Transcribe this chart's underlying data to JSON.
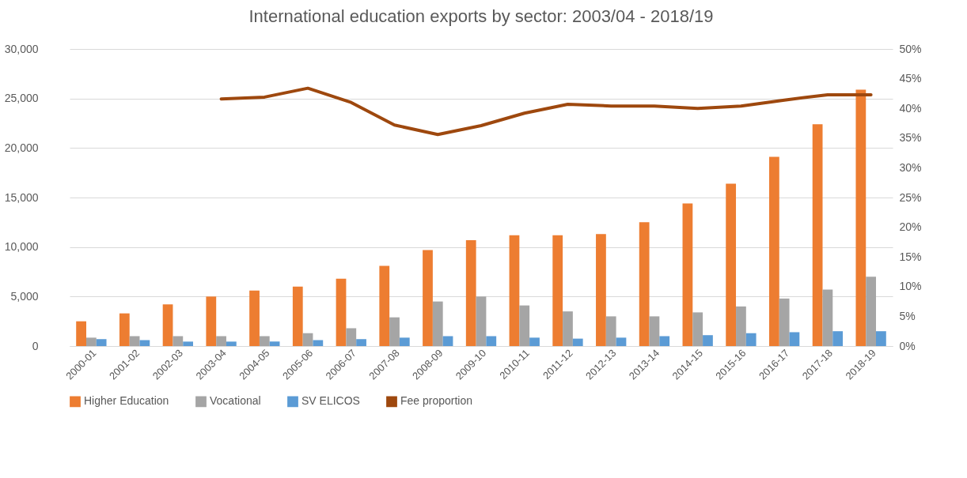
{
  "chart_data": {
    "type": "bar",
    "title": "International education exports by sector: 2003/04 - 2018/19",
    "categories": [
      "2000-01",
      "2001-02",
      "2002-03",
      "2003-04",
      "2004-05",
      "2005-06",
      "2006-07",
      "2007-08",
      "2008-09",
      "2009-10",
      "2010-11",
      "2011-12",
      "2012-13",
      "2013-14",
      "2014-15",
      "2015-16",
      "2016-17",
      "2017-18",
      "2018-19"
    ],
    "series": [
      {
        "name": "Higher Education",
        "color": "#ed7d31",
        "values": [
          2500,
          3300,
          4200,
          5000,
          5600,
          6000,
          6800,
          8100,
          9700,
          10700,
          11200,
          11200,
          11300,
          12500,
          14400,
          16400,
          19100,
          22400,
          25900
        ]
      },
      {
        "name": "Vocational",
        "color": "#a5a5a5",
        "values": [
          850,
          1000,
          1000,
          1000,
          1000,
          1300,
          1800,
          2900,
          4500,
          5000,
          4100,
          3500,
          3000,
          3000,
          3400,
          4000,
          4800,
          5700,
          7000
        ]
      },
      {
        "name": "SV ELICOS",
        "color": "#5b9bd5",
        "values": [
          700,
          600,
          450,
          450,
          450,
          600,
          700,
          850,
          1000,
          1000,
          850,
          750,
          850,
          1000,
          1100,
          1300,
          1400,
          1500,
          1500
        ]
      },
      {
        "name": "Fee proportion",
        "type": "line",
        "axis": "y2",
        "color": "#9e480e",
        "values": [
          null,
          null,
          null,
          41.6,
          41.9,
          43.4,
          41.0,
          37.2,
          35.6,
          37.1,
          39.2,
          40.7,
          40.4,
          40.4,
          40.0,
          40.4,
          41.4,
          42.3,
          42.3
        ]
      }
    ],
    "ylim": [
      0,
      30000
    ],
    "yticks": [
      0,
      {
        "value": 5000,
        "label": "5,000"
      },
      {
        "value": 10000,
        "label": "10,000"
      },
      {
        "value": 15000,
        "label": "15,000"
      },
      {
        "value": 20000,
        "label": "20,000"
      },
      {
        "value": 25000,
        "label": "25,000"
      },
      {
        "value": 30000,
        "label": "30,000"
      }
    ],
    "y2lim": [
      0,
      50
    ],
    "y2ticks": [
      {
        "value": 0,
        "label": "0%"
      },
      {
        "value": 5,
        "label": "5%"
      },
      {
        "value": 10,
        "label": "10%"
      },
      {
        "value": 15,
        "label": "15%"
      },
      {
        "value": 20,
        "label": "20%"
      },
      {
        "value": 25,
        "label": "25%"
      },
      {
        "value": 30,
        "label": "30%"
      },
      {
        "value": 35,
        "label": "35%"
      },
      {
        "value": 40,
        "label": "40%"
      },
      {
        "value": 45,
        "label": "45%"
      },
      {
        "value": 50,
        "label": "50%"
      }
    ],
    "grid": "y",
    "legend": "bottom",
    "marker": "none",
    "line_style": "solid"
  }
}
